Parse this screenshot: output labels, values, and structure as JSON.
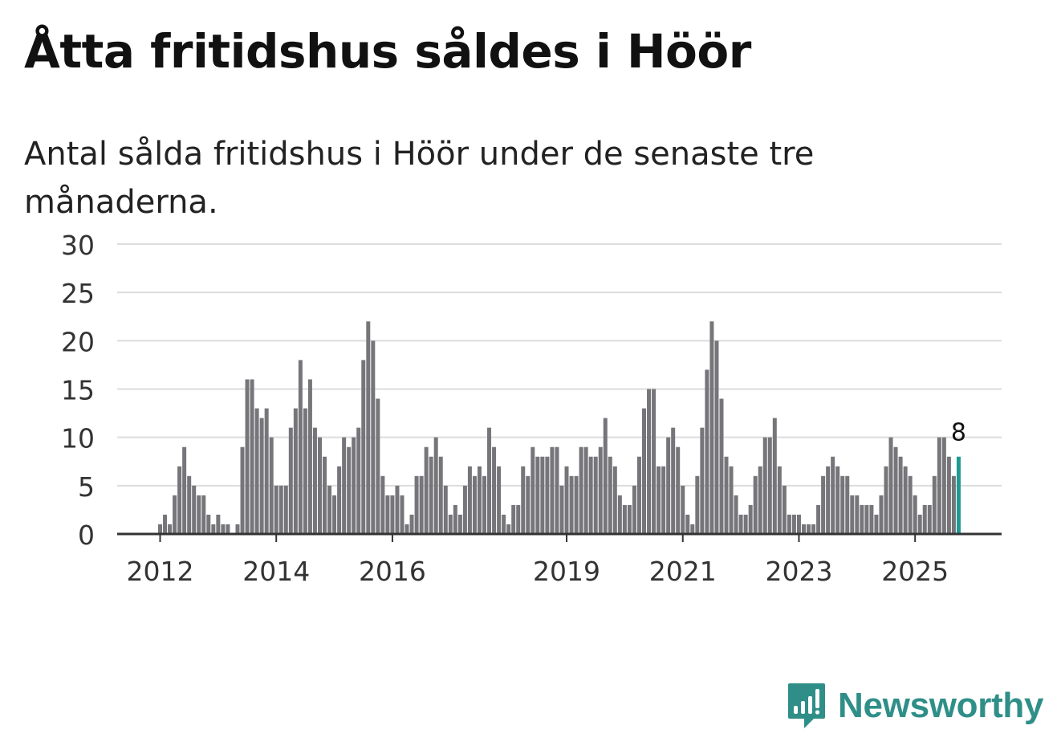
{
  "header": {
    "title": "Åtta fritidshus såldes i Höör",
    "subtitle": "Antal sålda fritidshus i Höör under de senaste tre månaderna."
  },
  "brand": {
    "name": "Newsworthy",
    "icon": "newsworthy-logo-icon",
    "color": "#2f8f88"
  },
  "chart_data": {
    "type": "bar",
    "ylim": [
      0,
      30
    ],
    "yticks": [
      0,
      5,
      10,
      15,
      20,
      25,
      30
    ],
    "x_tick_labels": [
      "2012",
      "2014",
      "2016",
      "2019",
      "2021",
      "2023",
      "2025"
    ],
    "bar_color": "#76767a",
    "highlight_color": "#1e9a93",
    "grid": true,
    "values": [
      1,
      2,
      1,
      4,
      7,
      9,
      6,
      5,
      4,
      4,
      2,
      1,
      2,
      1,
      1,
      0,
      1,
      9,
      16,
      16,
      13,
      12,
      13,
      10,
      5,
      5,
      5,
      11,
      13,
      18,
      13,
      16,
      11,
      10,
      8,
      5,
      4,
      7,
      10,
      9,
      10,
      11,
      18,
      22,
      20,
      14,
      6,
      4,
      4,
      5,
      4,
      1,
      2,
      6,
      6,
      9,
      8,
      10,
      8,
      5,
      2,
      3,
      2,
      5,
      7,
      6,
      7,
      6,
      11,
      9,
      7,
      2,
      1,
      3,
      3,
      7,
      6,
      9,
      8,
      8,
      8,
      9,
      9,
      5,
      7,
      6,
      6,
      9,
      9,
      8,
      8,
      9,
      12,
      8,
      7,
      4,
      3,
      3,
      5,
      8,
      13,
      15,
      15,
      7,
      7,
      10,
      11,
      9,
      5,
      2,
      1,
      6,
      11,
      17,
      22,
      20,
      14,
      8,
      7,
      4,
      2,
      2,
      3,
      6,
      7,
      10,
      10,
      12,
      7,
      5,
      2,
      2,
      2,
      1,
      1,
      1,
      3,
      6,
      7,
      8,
      7,
      6,
      6,
      4,
      4,
      3,
      3,
      3,
      2,
      4,
      7,
      10,
      9,
      8,
      7,
      6,
      4,
      2,
      3,
      3,
      6,
      10,
      10,
      8,
      6,
      8
    ],
    "last_value_label": "8"
  }
}
